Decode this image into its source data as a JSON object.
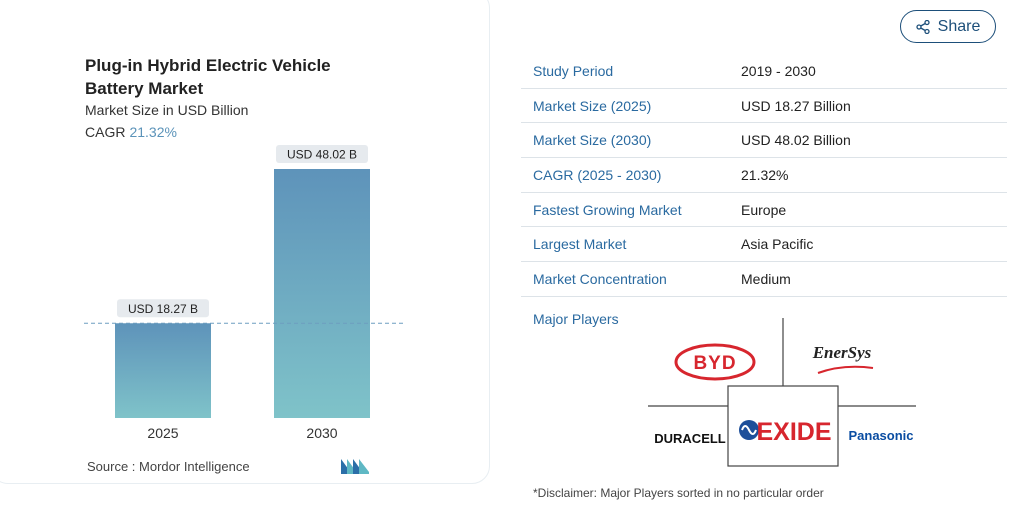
{
  "chart": {
    "title": "Plug-in Hybrid Electric Vehicle Battery Market",
    "subtitle": "Market Size in USD Billion",
    "cagr_label": "CAGR",
    "cagr_value": "21.32%",
    "source": "Source :  Mordor Intelligence"
  },
  "chart_data": {
    "type": "bar",
    "categories": [
      "2025",
      "2030"
    ],
    "values": [
      18.27,
      48.02
    ],
    "data_labels": [
      "USD 18.27 B",
      "USD 48.02 B"
    ],
    "title": "Plug-in Hybrid Electric Vehicle Battery Market",
    "subtitle": "Market Size in USD Billion",
    "ylim": [
      0,
      48.02
    ],
    "grid": false,
    "reference_line": "dashed line at 2025 value"
  },
  "share": {
    "label": "Share",
    "icon": "share-icon"
  },
  "facts": [
    {
      "label": "Study Period",
      "value": "2019 - 2030"
    },
    {
      "label": "Market Size (2025)",
      "value": "USD 18.27 Billion"
    },
    {
      "label": "Market Size (2030)",
      "value": "USD 48.02 Billion"
    },
    {
      "label": "CAGR (2025 - 2030)",
      "value": "21.32%"
    },
    {
      "label": "Fastest Growing Market",
      "value": "Europe"
    },
    {
      "label": "Largest Market",
      "value": "Asia Pacific"
    },
    {
      "label": "Market Concentration",
      "value": "Medium"
    }
  ],
  "players": {
    "label": "Major Players",
    "logos": [
      "BYD",
      "EnerSys",
      "DURACELL",
      "EXIDE",
      "Panasonic"
    ]
  },
  "disclaimer": "*Disclaimer: Major Players sorted in no particular order",
  "colors": {
    "bar_top": "#5e93ba",
    "bar_bottom": "#7fc3c9",
    "label_blue": "#2a6aa0",
    "byd_red": "#d7262e",
    "exide_red": "#d7262e",
    "exide_blue": "#1d4f9a",
    "panasonic_blue": "#0a4da2"
  }
}
